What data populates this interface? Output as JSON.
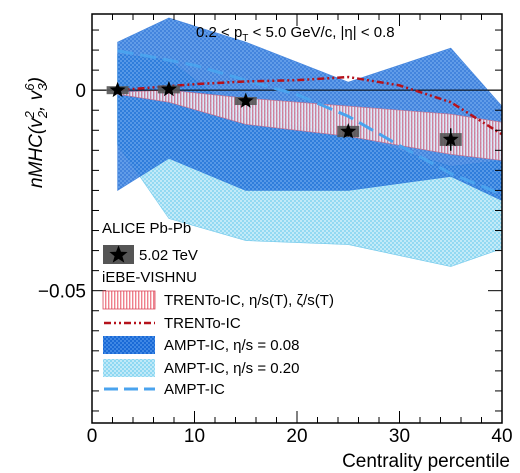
{
  "chart_data": {
    "type": "line",
    "title": "0.2 < p_T < 5.0 GeV/c, |η| < 0.8",
    "title_parts": {
      "pre": "0.2 < p",
      "sub": "T",
      "post": " < 5.0 GeV/c,  |η| < 0.8"
    },
    "xlabel": "Centrality percentile",
    "ylabel_parts": {
      "pre": "nMHC(v",
      "sup1": "2",
      "sub1": "2",
      "mid": ", v",
      "sup2": "6",
      "sub2": "3",
      "post": ")"
    },
    "xlim": [
      0,
      40
    ],
    "ylim": [
      -0.083,
      0.019
    ],
    "xticks": [
      0,
      10,
      20,
      30,
      40
    ],
    "xtick_labels": [
      "0",
      "10",
      "20",
      "30",
      "40"
    ],
    "yticks": [
      0,
      -0.05
    ],
    "ytick_labels": [
      "0",
      "−0.05"
    ],
    "grid": false,
    "legend": {
      "position": "bottom-left",
      "exp_header": "ALICE Pb-Pb",
      "exp_entry": "5.02 TeV",
      "model_header": "iEBE-VISHNU",
      "entries": [
        "TRENTo-IC, η/s(T), ζ/s(T)",
        "TRENTo-IC",
        "AMPT-IC, η/s = 0.08",
        "AMPT-IC, η/s = 0.20",
        "AMPT-IC"
      ]
    },
    "colors": {
      "alice": "#000000",
      "alice_syst": "#555555",
      "trento_band": "#f08a96",
      "trento_line": "#b5121b",
      "ampt008": "#1f6fd8",
      "ampt020": "#7fd0ef",
      "ampt_line": "#4aa3ee"
    },
    "series": [
      {
        "name": "5.02 TeV",
        "kind": "points",
        "x": [
          2.5,
          7.5,
          15,
          25,
          35
        ],
        "y": [
          0.0,
          0.0002,
          -0.0027,
          -0.0103,
          -0.0123
        ],
        "yerr": [
          0.0004,
          0.0007,
          0.001,
          0.0012,
          0.0028
        ],
        "syst": [
          0.0008,
          0.001,
          0.001,
          0.0014,
          0.0016
        ]
      },
      {
        "name": "TRENTo-IC, η/s(T), ζ/s(T)",
        "kind": "band",
        "x": [
          2.5,
          7.5,
          15,
          25,
          35,
          40
        ],
        "lower": [
          -0.001,
          -0.003,
          -0.0085,
          -0.0115,
          -0.016,
          -0.0175
        ],
        "upper": [
          -0.0005,
          0.0,
          -0.002,
          -0.004,
          -0.006,
          -0.008
        ]
      },
      {
        "name": "TRENTo-IC",
        "kind": "line",
        "x": [
          2.5,
          5,
          10,
          15,
          20,
          25,
          30,
          35,
          40
        ],
        "y": [
          0.0,
          0.0005,
          0.0015,
          0.0022,
          0.0025,
          0.0033,
          0.0012,
          -0.003,
          -0.011
        ]
      },
      {
        "name": "AMPT-IC, η/s = 0.08",
        "kind": "band",
        "x": [
          2.5,
          7.5,
          15,
          25,
          35,
          40
        ],
        "lower": [
          -0.025,
          -0.017,
          -0.025,
          -0.025,
          -0.0215,
          -0.0275
        ],
        "upper": [
          0.012,
          0.018,
          0.012,
          0.002,
          0.0105,
          -0.004
        ]
      },
      {
        "name": "AMPT-IC, η/s = 0.20",
        "kind": "band",
        "x": [
          2.5,
          7.5,
          15,
          25,
          35,
          40
        ],
        "lower": [
          -0.0135,
          -0.032,
          -0.0375,
          -0.0385,
          -0.044,
          -0.0395
        ],
        "upper": [
          0.009,
          0.0075,
          -0.007,
          -0.011,
          -0.019,
          -0.0175
        ]
      },
      {
        "name": "AMPT-IC",
        "kind": "line",
        "x": [
          2.5,
          5,
          10,
          15,
          20,
          25,
          30,
          35,
          40
        ],
        "y": [
          0.0098,
          0.0087,
          0.0062,
          0.0025,
          -0.0011,
          -0.0065,
          -0.0138,
          -0.0208,
          -0.026
        ]
      }
    ]
  }
}
